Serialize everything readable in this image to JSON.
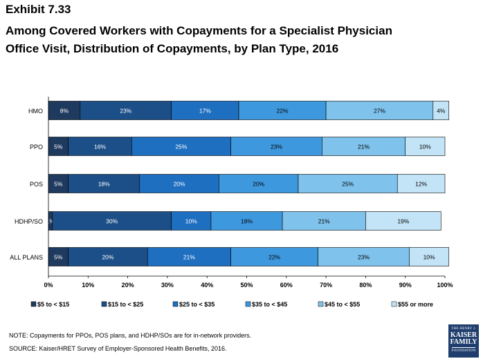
{
  "header": {
    "exhibit": "Exhibit 7.33",
    "title": "Among Covered Workers with Copayments for a Specialist Physician\nOffice Visit, Distribution of Copayments, by Plan Type, 2016"
  },
  "chart_data": {
    "type": "bar",
    "orientation": "horizontal",
    "stacked": true,
    "categories": [
      "HMO",
      "PPO",
      "POS",
      "HDHP/SO",
      "ALL PLANS"
    ],
    "series": [
      {
        "name": "$5 to < $15",
        "color": "#1f3a5f",
        "values": [
          8,
          5,
          5,
          1,
          5
        ],
        "labels": [
          "8%",
          "5%",
          "5%",
          "1%",
          "5%"
        ]
      },
      {
        "name": "$15 to < $25",
        "color": "#1c4f87",
        "values": [
          23,
          16,
          18,
          30,
          20
        ],
        "labels": [
          "23%",
          "16%",
          "18%",
          "30%",
          "20%"
        ]
      },
      {
        "name": "$25 to < $35",
        "color": "#1f6fc1",
        "values": [
          17,
          25,
          20,
          10,
          21
        ],
        "labels": [
          "17%",
          "25%",
          "20%",
          "10%",
          "21%"
        ]
      },
      {
        "name": "$35 to < $45",
        "color": "#3e98de",
        "values": [
          22,
          23,
          20,
          18,
          22
        ],
        "labels": [
          "22%",
          "23%",
          "20%",
          "18%",
          "22%"
        ]
      },
      {
        "name": "$45 to < $55",
        "color": "#7fc2ec",
        "values": [
          27,
          21,
          25,
          21,
          23
        ],
        "labels": [
          "27%",
          "21%",
          "25%",
          "21%",
          "23%"
        ]
      },
      {
        "name": "$55 or more",
        "color": "#c3e4f6",
        "values": [
          4,
          10,
          12,
          19,
          10
        ],
        "labels": [
          "4%",
          "10%",
          "12%",
          "19%",
          "10%"
        ]
      }
    ],
    "xlim": [
      0,
      100
    ],
    "xticks": [
      "0%",
      "10%",
      "20%",
      "30%",
      "40%",
      "50%",
      "60%",
      "70%",
      "80%",
      "90%",
      "100%"
    ],
    "legend_position": "bottom",
    "grid": false
  },
  "footer": {
    "note": "NOTE:  Copayments for PPOs, POS plans, and HDHP/SOs are for in-network providers.",
    "source": "SOURCE:  Kaiser/HRET Survey of Employer-Sponsored Health Benefits, 2016.",
    "logo": {
      "line1": "THE HENRY J.",
      "line2": "KAISER",
      "line3": "FAMILY",
      "line4": "FOUNDATION"
    }
  }
}
